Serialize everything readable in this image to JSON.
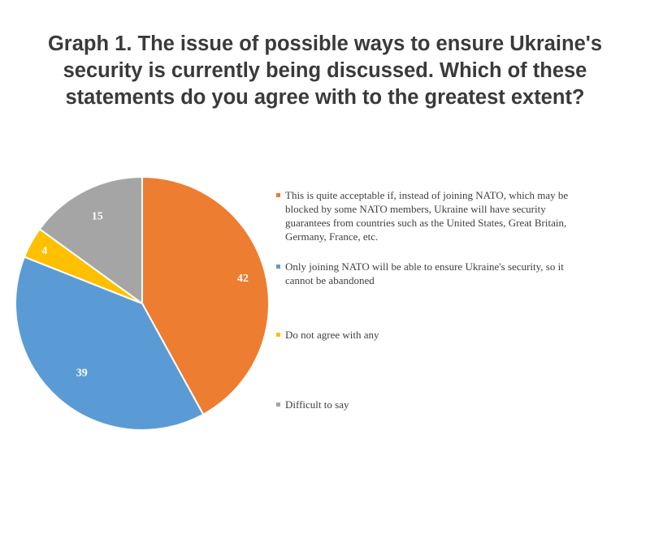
{
  "title_lines": [
    "Graph 1. The issue of possible ways to ensure Ukraine's",
    "security is currently being discussed. Which of these",
    "statements do you agree with to the greatest extent?"
  ],
  "colors": {
    "orange": "#ED7D31",
    "blue": "#5B9BD5",
    "yellow": "#FFC000",
    "gray": "#A5A5A5",
    "label": "#ffffff"
  },
  "chart_data": {
    "type": "pie",
    "title": "Graph 1. The issue of possible ways to ensure Ukraine's security is currently being discussed. Which of these statements do you agree with to the greatest extent?",
    "categories": [
      "This is quite acceptable if, instead of joining NATO, which may be blocked by some NATO members, Ukraine will have security guarantees from countries such as the United States, Great Britain, Germany, France, etc.",
      "Only joining NATO will be able to ensure Ukraine's security, so it cannot be abandoned",
      "Do not agree with any",
      "Difficult to say"
    ],
    "values": [
      42,
      39,
      4,
      15
    ],
    "data_labels": [
      "42",
      "39",
      "4",
      "15"
    ],
    "legend_position": "right"
  }
}
